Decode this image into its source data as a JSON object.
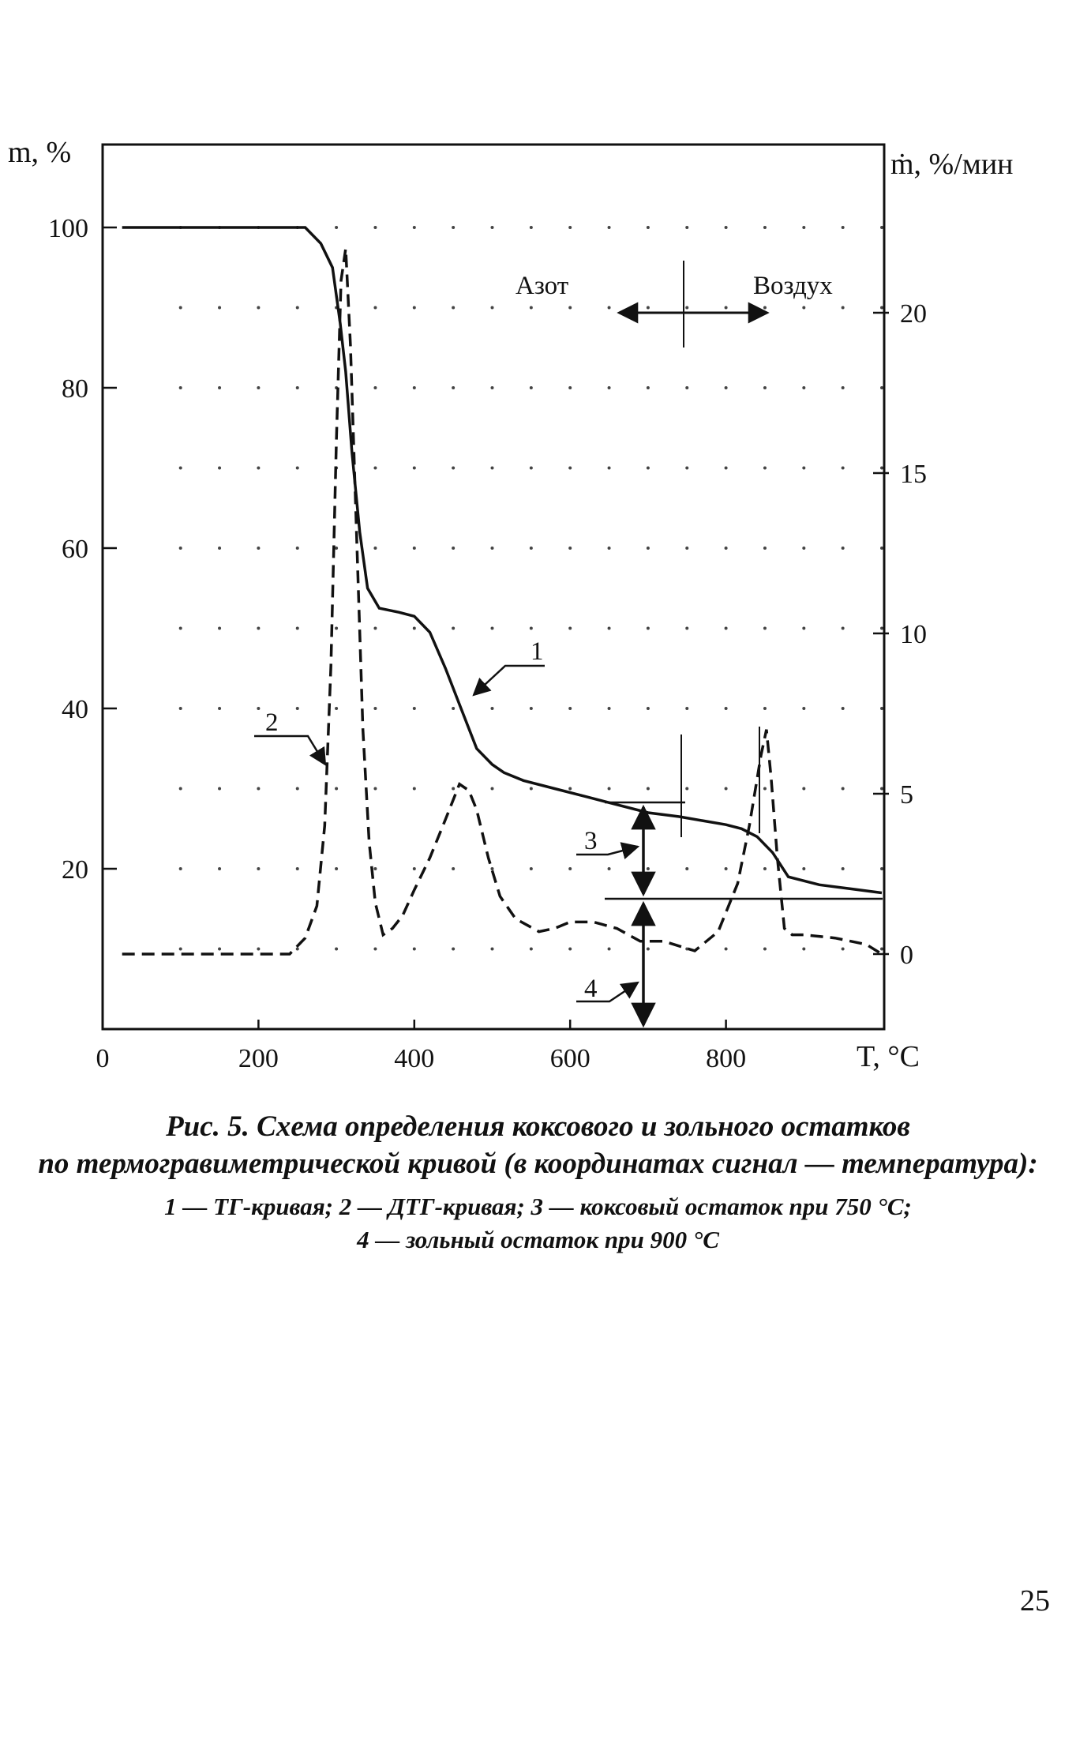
{
  "chart_data": {
    "type": "line",
    "xlabel": "T, °C",
    "ylabel": "m, %",
    "y2label": "ṁ, %/мин",
    "xlim": [
      0,
      1000
    ],
    "ylim": [
      0,
      100
    ],
    "y2lim": [
      -2.5,
      22.5
    ],
    "xticks": [
      "0",
      "200",
      "400",
      "600",
      "800"
    ],
    "yticks": [
      "20",
      "40",
      "60",
      "80",
      "100"
    ],
    "y2ticks": [
      "0",
      "5",
      "10",
      "15",
      "20"
    ],
    "grid": "dotted",
    "series": [
      {
        "name": "1",
        "axis": "left",
        "style": "solid",
        "x": [
          25,
          100,
          200,
          260,
          280,
          295,
          305,
          312,
          320,
          330,
          340,
          355,
          380,
          400,
          420,
          440,
          460,
          480,
          500,
          515,
          540,
          580,
          620,
          660,
          700,
          740,
          770,
          800,
          820,
          840,
          860,
          880,
          920,
          960,
          1000
        ],
        "y": [
          100,
          100,
          100,
          100,
          98,
          95,
          88,
          82,
          72,
          62,
          55,
          52.5,
          52,
          51.5,
          49.5,
          45,
          40,
          35,
          33,
          32,
          31,
          30,
          29,
          28,
          27,
          26.5,
          26,
          25.5,
          25,
          24,
          22,
          19,
          18,
          17.5,
          17
        ]
      },
      {
        "name": "2",
        "axis": "right",
        "style": "dashed",
        "x": [
          25,
          100,
          200,
          240,
          260,
          275,
          285,
          293,
          300,
          306,
          312,
          318,
          326,
          334,
          342,
          350,
          360,
          372,
          385,
          400,
          420,
          440,
          458,
          470,
          480,
          495,
          510,
          530,
          560,
          580,
          600,
          630,
          660,
          690,
          720,
          760,
          790,
          815,
          830,
          845,
          852,
          858,
          866,
          875,
          885,
          900,
          940,
          980,
          1000
        ],
        "y": [
          0,
          0,
          0,
          0,
          0.5,
          1.5,
          4,
          9,
          16,
          21,
          22,
          19,
          13,
          7,
          3.5,
          1.6,
          0.6,
          0.8,
          1.2,
          2,
          3,
          4.2,
          5.3,
          5.1,
          4.5,
          3,
          1.8,
          1.1,
          0.7,
          0.8,
          1,
          1,
          0.8,
          0.4,
          0.4,
          0.1,
          0.7,
          2.2,
          4,
          6.2,
          7,
          5.5,
          3,
          0.8,
          0.6,
          0.6,
          0.5,
          0.3,
          0
        ]
      }
    ],
    "annotations": {
      "nitrogen": "Азот",
      "air": "Воздух",
      "label_1": "1",
      "label_2": "2",
      "label_3": "3",
      "label_4": "4"
    }
  },
  "caption": {
    "line1": "Рис. 5. Схема определения коксового и зольного остатков",
    "line2": "по термогравиметрической кривой (в координатах сигнал — температура):",
    "line3": "1 — ТГ-кривая; 2 — ДТГ-кривая; 3 — коксовый остаток при 750 °С;",
    "line4": "4 — зольный остаток при 900 °С"
  },
  "page_number": "25"
}
